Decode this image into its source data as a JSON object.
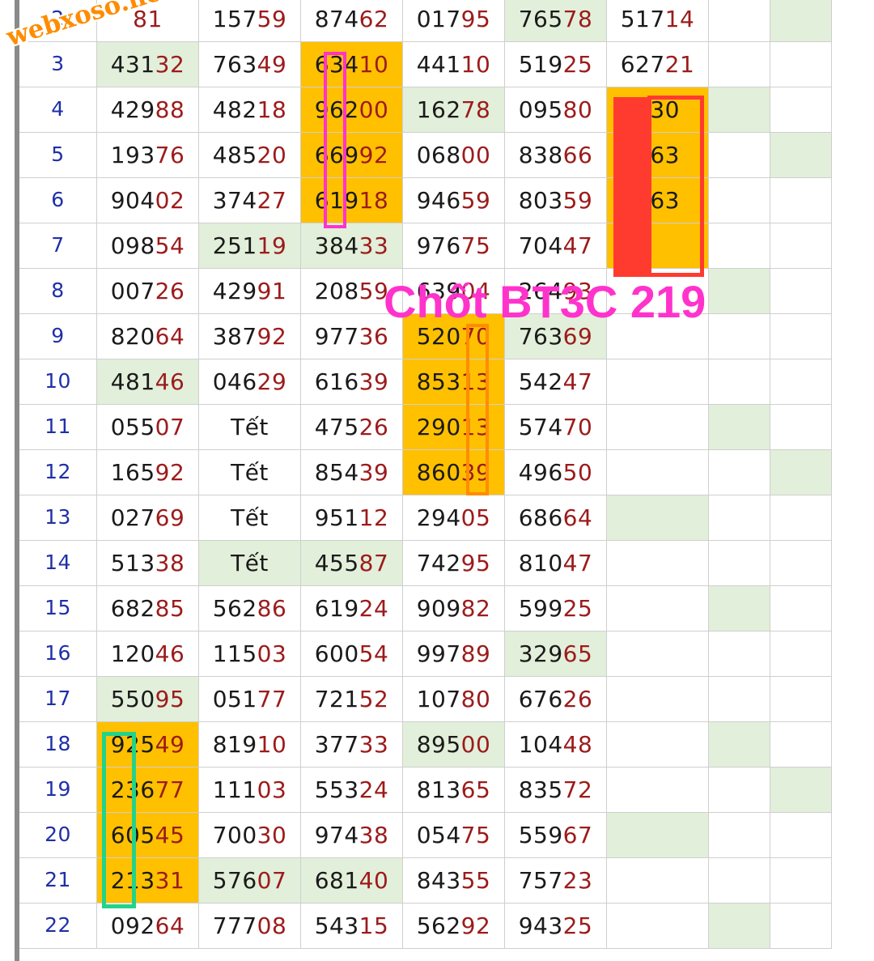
{
  "watermark": "webxoso.net",
  "annotation": "Chốt BT3C 219",
  "colors": {
    "green": "#e2efda",
    "orange": "#ffc000",
    "tail": "#9c1b1b",
    "rownum": "#1f2fa8"
  },
  "rows": [
    {
      "n": "2",
      "cells": [
        [
          "",
          "81",
          ""
        ],
        [
          "157",
          "59",
          ""
        ],
        [
          "874",
          "62",
          ""
        ],
        [
          "017",
          "95",
          ""
        ],
        [
          "765",
          "78",
          "green"
        ],
        [
          "517",
          "14",
          ""
        ],
        [
          "",
          "",
          ""
        ],
        [
          "",
          "",
          "green"
        ]
      ]
    },
    {
      "n": "3",
      "cells": [
        [
          "431",
          "32",
          "green"
        ],
        [
          "763",
          "49",
          ""
        ],
        [
          "634",
          "10",
          "orange"
        ],
        [
          "441",
          "10",
          ""
        ],
        [
          "519",
          "25",
          ""
        ],
        [
          "627",
          "21",
          ""
        ],
        [
          "",
          "",
          ""
        ],
        [
          "",
          "",
          ""
        ]
      ]
    },
    {
      "n": "4",
      "cells": [
        [
          "429",
          "88",
          ""
        ],
        [
          "482",
          "18",
          ""
        ],
        [
          "962",
          "00",
          "orange"
        ],
        [
          "162",
          "78",
          "green"
        ],
        [
          "095",
          "80",
          ""
        ],
        [
          "930",
          "",
          "orange"
        ],
        [
          "",
          "",
          "green"
        ],
        [
          "",
          "",
          ""
        ]
      ]
    },
    {
      "n": "5",
      "cells": [
        [
          "193",
          "76",
          ""
        ],
        [
          "485",
          "20",
          ""
        ],
        [
          "669",
          "92",
          "orange"
        ],
        [
          "068",
          "00",
          ""
        ],
        [
          "838",
          "66",
          ""
        ],
        [
          "263",
          "",
          "orange"
        ],
        [
          "",
          "",
          ""
        ],
        [
          "",
          "",
          "green"
        ]
      ]
    },
    {
      "n": "6",
      "cells": [
        [
          "904",
          "02",
          ""
        ],
        [
          "374",
          "27",
          ""
        ],
        [
          "619",
          "18",
          "orange"
        ],
        [
          "946",
          "59",
          ""
        ],
        [
          "803",
          "59",
          ""
        ],
        [
          "663",
          "",
          "orange"
        ],
        [
          "",
          "",
          ""
        ],
        [
          "",
          "",
          ""
        ]
      ]
    },
    {
      "n": "7",
      "cells": [
        [
          "098",
          "54",
          ""
        ],
        [
          "251",
          "19",
          "green"
        ],
        [
          "384",
          "33",
          "green"
        ],
        [
          "976",
          "75",
          ""
        ],
        [
          "704",
          "47",
          ""
        ],
        [
          "",
          "",
          "orange"
        ],
        [
          "",
          "",
          ""
        ],
        [
          "",
          "",
          ""
        ]
      ]
    },
    {
      "n": "8",
      "cells": [
        [
          "007",
          "26",
          ""
        ],
        [
          "429",
          "91",
          ""
        ],
        [
          "208",
          "59",
          ""
        ],
        [
          "639",
          "04",
          ""
        ],
        [
          "264",
          "93",
          ""
        ],
        [
          "",
          "",
          ""
        ],
        [
          "",
          "",
          "green"
        ],
        [
          "",
          "",
          ""
        ]
      ]
    },
    {
      "n": "9",
      "cells": [
        [
          "820",
          "64",
          ""
        ],
        [
          "387",
          "92",
          ""
        ],
        [
          "977",
          "36",
          ""
        ],
        [
          "520",
          "70",
          "orange"
        ],
        [
          "763",
          "69",
          "green"
        ],
        [
          "",
          "",
          ""
        ],
        [
          "",
          "",
          ""
        ],
        [
          "",
          "",
          ""
        ]
      ]
    },
    {
      "n": "10",
      "cells": [
        [
          "481",
          "46",
          "green"
        ],
        [
          "046",
          "29",
          ""
        ],
        [
          "616",
          "39",
          ""
        ],
        [
          "853",
          "13",
          "orange"
        ],
        [
          "542",
          "47",
          ""
        ],
        [
          "",
          "",
          ""
        ],
        [
          "",
          "",
          ""
        ],
        [
          "",
          "",
          ""
        ]
      ]
    },
    {
      "n": "11",
      "cells": [
        [
          "055",
          "07",
          ""
        ],
        [
          "Tết",
          "",
          ""
        ],
        [
          "475",
          "26",
          ""
        ],
        [
          "290",
          "13",
          "orange"
        ],
        [
          "574",
          "70",
          ""
        ],
        [
          "",
          "",
          ""
        ],
        [
          "",
          "",
          "green"
        ],
        [
          "",
          "",
          ""
        ]
      ]
    },
    {
      "n": "12",
      "cells": [
        [
          "165",
          "92",
          ""
        ],
        [
          "Tết",
          "",
          ""
        ],
        [
          "854",
          "39",
          ""
        ],
        [
          "860",
          "39",
          "orange"
        ],
        [
          "496",
          "50",
          ""
        ],
        [
          "",
          "",
          ""
        ],
        [
          "",
          "",
          ""
        ],
        [
          "",
          "",
          "green"
        ]
      ]
    },
    {
      "n": "13",
      "cells": [
        [
          "027",
          "69",
          ""
        ],
        [
          "Tết",
          "",
          ""
        ],
        [
          "951",
          "12",
          ""
        ],
        [
          "294",
          "05",
          ""
        ],
        [
          "686",
          "64",
          ""
        ],
        [
          "",
          "",
          "green"
        ],
        [
          "",
          "",
          ""
        ],
        [
          "",
          "",
          ""
        ]
      ]
    },
    {
      "n": "14",
      "cells": [
        [
          "513",
          "38",
          ""
        ],
        [
          "Tết",
          "",
          "green"
        ],
        [
          "455",
          "87",
          "green"
        ],
        [
          "742",
          "95",
          ""
        ],
        [
          "810",
          "47",
          ""
        ],
        [
          "",
          "",
          ""
        ],
        [
          "",
          "",
          ""
        ],
        [
          "",
          "",
          ""
        ]
      ]
    },
    {
      "n": "15",
      "cells": [
        [
          "682",
          "85",
          ""
        ],
        [
          "562",
          "86",
          ""
        ],
        [
          "619",
          "24",
          ""
        ],
        [
          "909",
          "82",
          ""
        ],
        [
          "599",
          "25",
          ""
        ],
        [
          "",
          "",
          ""
        ],
        [
          "",
          "",
          "green"
        ],
        [
          "",
          "",
          ""
        ]
      ]
    },
    {
      "n": "16",
      "cells": [
        [
          "120",
          "46",
          ""
        ],
        [
          "115",
          "03",
          ""
        ],
        [
          "600",
          "54",
          ""
        ],
        [
          "997",
          "89",
          ""
        ],
        [
          "329",
          "65",
          "green"
        ],
        [
          "",
          "",
          ""
        ],
        [
          "",
          "",
          ""
        ],
        [
          "",
          "",
          ""
        ]
      ]
    },
    {
      "n": "17",
      "cells": [
        [
          "550",
          "95",
          "green"
        ],
        [
          "051",
          "77",
          ""
        ],
        [
          "721",
          "52",
          ""
        ],
        [
          "107",
          "80",
          ""
        ],
        [
          "676",
          "26",
          ""
        ],
        [
          "",
          "",
          ""
        ],
        [
          "",
          "",
          ""
        ],
        [
          "",
          "",
          ""
        ]
      ]
    },
    {
      "n": "18",
      "cells": [
        [
          "925",
          "49",
          "orange"
        ],
        [
          "819",
          "10",
          ""
        ],
        [
          "377",
          "33",
          ""
        ],
        [
          "895",
          "00",
          "green"
        ],
        [
          "104",
          "48",
          ""
        ],
        [
          "",
          "",
          ""
        ],
        [
          "",
          "",
          "green"
        ],
        [
          "",
          "",
          ""
        ]
      ]
    },
    {
      "n": "19",
      "cells": [
        [
          "236",
          "77",
          "orange"
        ],
        [
          "111",
          "03",
          ""
        ],
        [
          "553",
          "24",
          ""
        ],
        [
          "813",
          "65",
          ""
        ],
        [
          "835",
          "72",
          ""
        ],
        [
          "",
          "",
          ""
        ],
        [
          "",
          "",
          ""
        ],
        [
          "",
          "",
          "green"
        ]
      ]
    },
    {
      "n": "20",
      "cells": [
        [
          "605",
          "45",
          "orange"
        ],
        [
          "700",
          "30",
          ""
        ],
        [
          "974",
          "38",
          ""
        ],
        [
          "054",
          "75",
          ""
        ],
        [
          "559",
          "67",
          ""
        ],
        [
          "",
          "",
          "green"
        ],
        [
          "",
          "",
          ""
        ],
        [
          "",
          "",
          ""
        ]
      ]
    },
    {
      "n": "21",
      "cells": [
        [
          "213",
          "31",
          "orange"
        ],
        [
          "576",
          "07",
          "green"
        ],
        [
          "681",
          "40",
          "green"
        ],
        [
          "843",
          "55",
          ""
        ],
        [
          "757",
          "23",
          ""
        ],
        [
          "",
          "",
          ""
        ],
        [
          "",
          "",
          ""
        ],
        [
          "",
          "",
          ""
        ]
      ]
    },
    {
      "n": "22",
      "cells": [
        [
          "092",
          "64",
          ""
        ],
        [
          "777",
          "08",
          ""
        ],
        [
          "543",
          "15",
          ""
        ],
        [
          "562",
          "92",
          ""
        ],
        [
          "943",
          "25",
          ""
        ],
        [
          "",
          "",
          ""
        ],
        [
          "",
          "",
          "green"
        ],
        [
          "",
          "",
          ""
        ]
      ]
    }
  ]
}
